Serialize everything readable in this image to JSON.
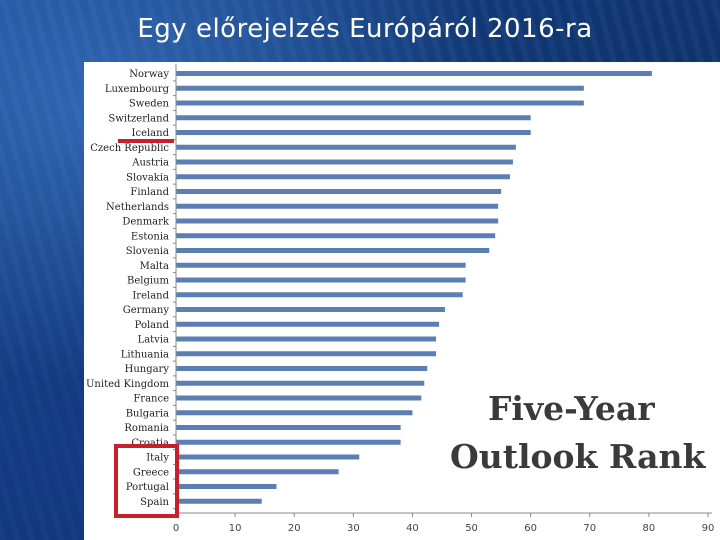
{
  "slide": {
    "title": "Egy előrejelzés Európáról 2016-ra"
  },
  "chart_data": {
    "type": "bar",
    "orientation": "horizontal",
    "title_lines": [
      "Five-Year",
      "Outlook Rank"
    ],
    "categories": [
      "Norway",
      "Luxembourg",
      "Sweden",
      "Switzerland",
      "Iceland",
      "Czech Republic",
      "Austria",
      "Slovakia",
      "Finland",
      "Netherlands",
      "Denmark",
      "Estonia",
      "Slovenia",
      "Malta",
      "Belgium",
      "Ireland",
      "Germany",
      "Poland",
      "Latvia",
      "Lithuania",
      "Hungary",
      "United Kingdom",
      "France",
      "Bulgaria",
      "Romania",
      "Croatia",
      "Italy",
      "Greece",
      "Portugal",
      "Spain"
    ],
    "values": [
      80.5,
      69,
      69,
      60,
      60,
      57.5,
      57,
      56.5,
      55,
      54.5,
      54.5,
      54,
      53,
      49,
      49,
      48.5,
      45.5,
      44.5,
      44,
      44,
      42.5,
      42,
      41.5,
      40,
      38,
      38,
      31,
      27.5,
      17,
      14.5
    ],
    "xlim": [
      0,
      90
    ],
    "xticks": [
      "0",
      "10",
      "20",
      "30",
      "40",
      "50",
      "60",
      "70",
      "80",
      "90"
    ],
    "bar_color": "#5b7fb5",
    "grid": "none",
    "highlights": {
      "color": "#c8202a",
      "underline_after": "Iceland",
      "boxed": [
        "Italy",
        "Greece",
        "Portugal",
        "Spain"
      ]
    }
  }
}
